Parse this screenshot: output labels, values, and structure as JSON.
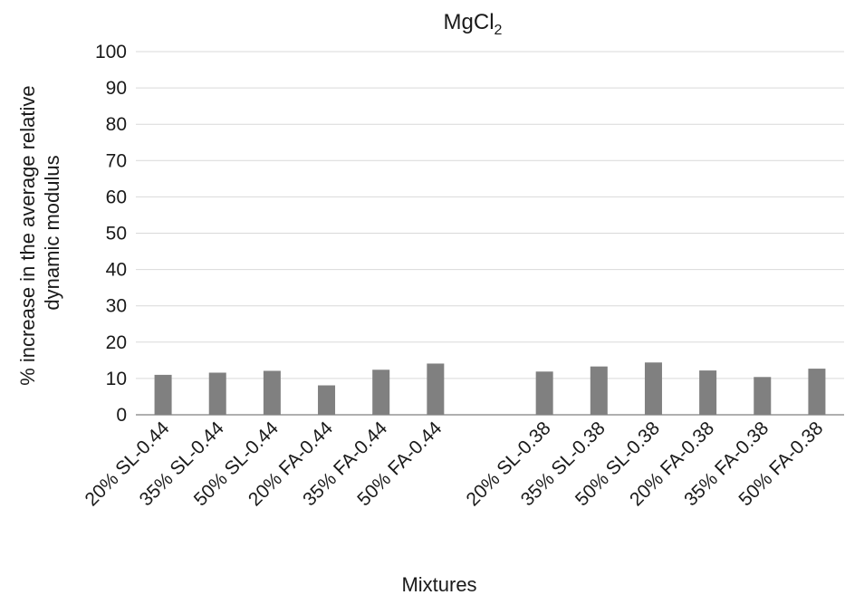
{
  "chart_data": {
    "type": "bar",
    "title": "MgCl",
    "title_subscript": "2",
    "xlabel": "Mixtures",
    "ylabel_lines": [
      "% increase in the average relative",
      "dynamic modulus"
    ],
    "ylim": [
      0,
      100
    ],
    "yticks": [
      0,
      10,
      20,
      30,
      40,
      50,
      60,
      70,
      80,
      90,
      100
    ],
    "grid": true,
    "bar_color": "#808080",
    "grid_color": "#d9d9d9",
    "categories": [
      "20% SL-0.44",
      "35% SL-0.44",
      "50% SL-0.44",
      "20% FA-0.44",
      "35% FA-0.44",
      "50% FA-0.44",
      "",
      "20% SL-0.38",
      "35% SL-0.38",
      "50% SL-0.38",
      "20% FA-0.38",
      "35% FA-0.38",
      "50% FA-0.38"
    ],
    "values": [
      11,
      11.6,
      12.1,
      8.1,
      12.4,
      14.1,
      null,
      11.9,
      13.3,
      14.4,
      12.2,
      10.4,
      12.7
    ]
  }
}
